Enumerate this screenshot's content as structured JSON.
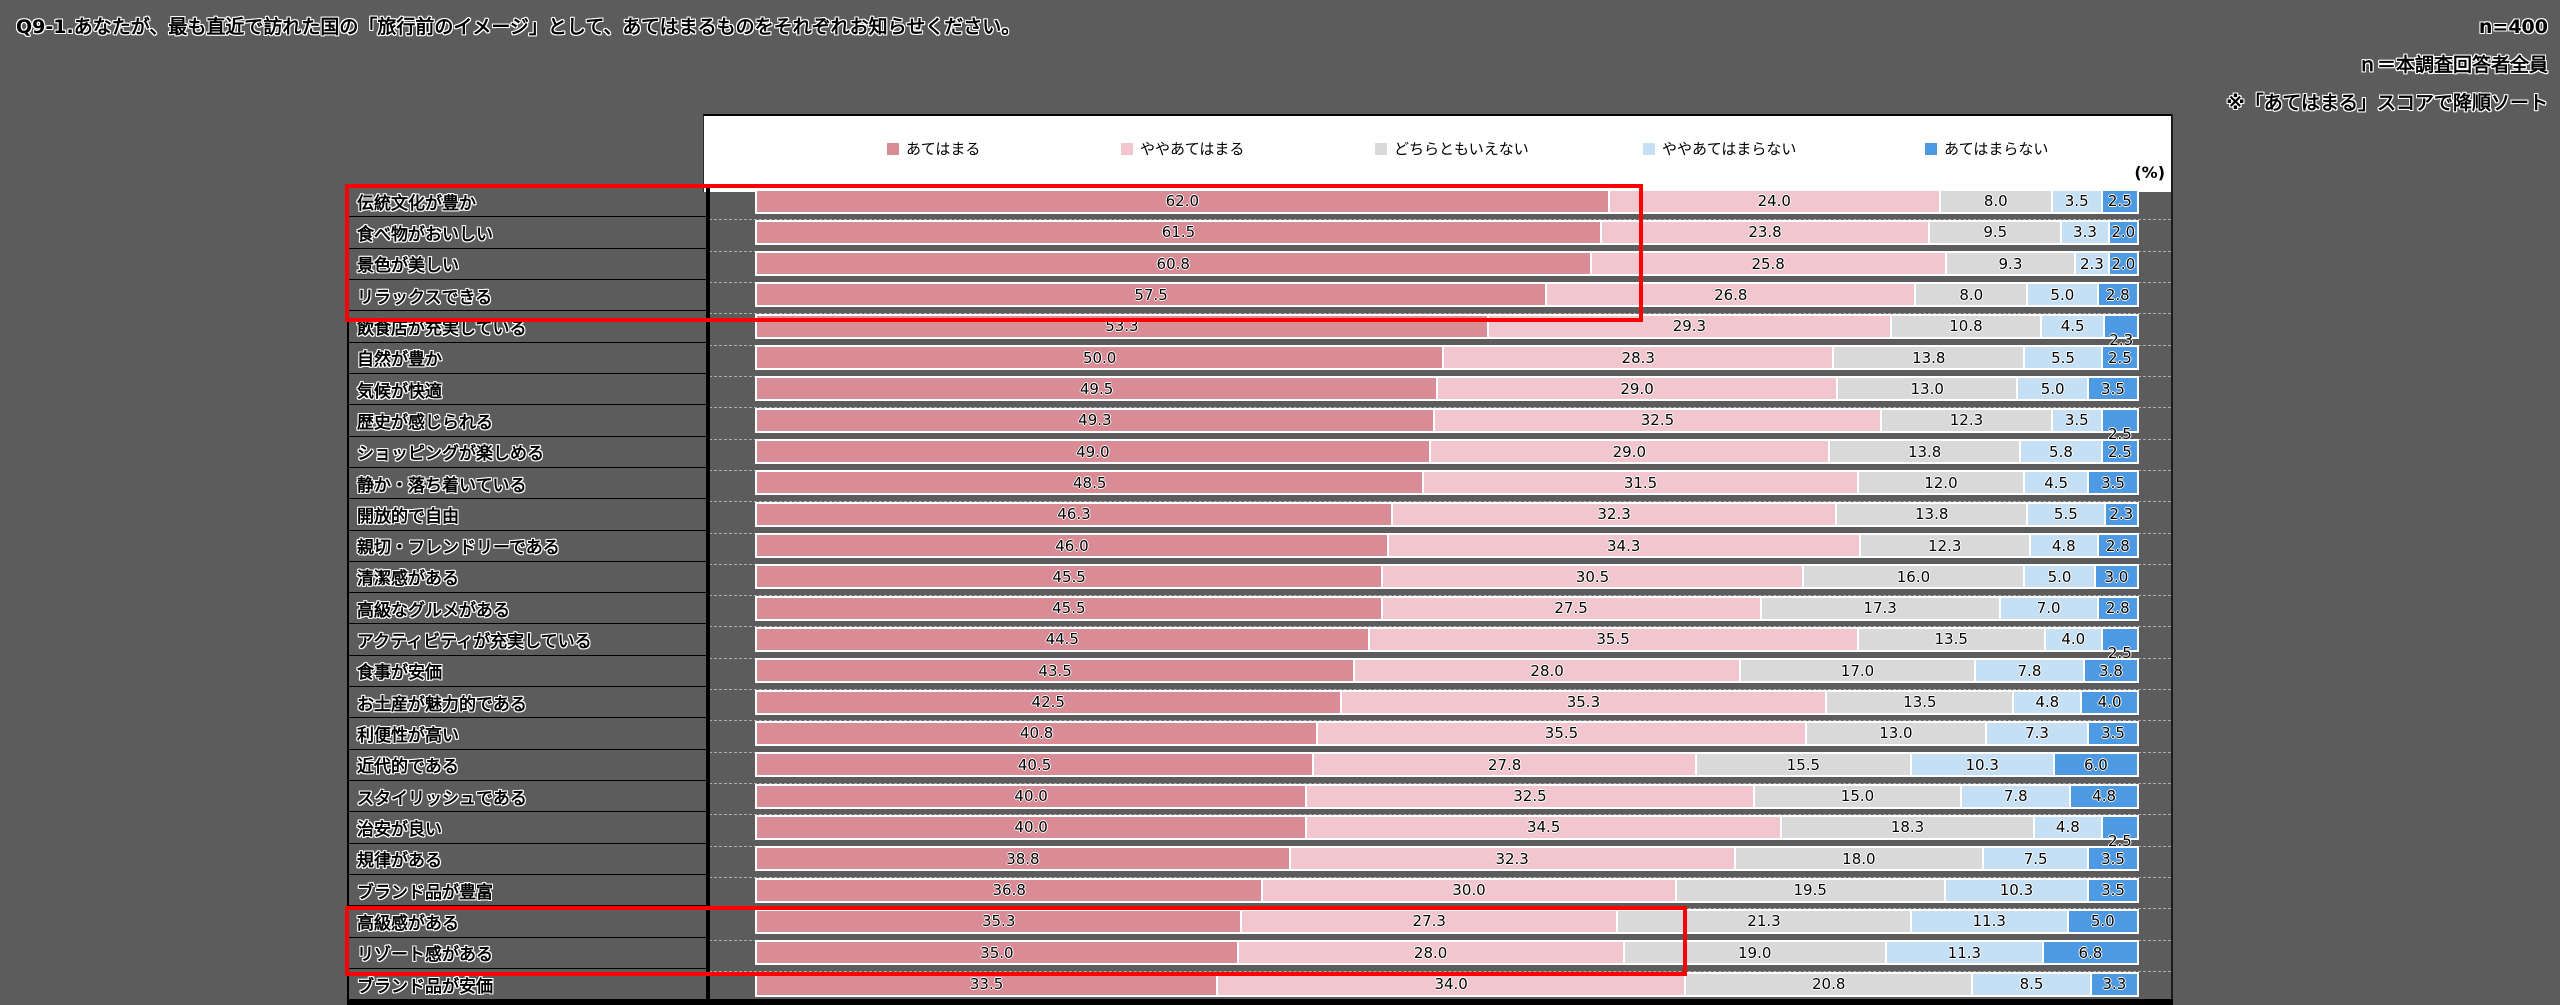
{
  "header": {
    "title": "Q9-1.あなたが、最も直近で訪れた国の「旅行前のイメージ」として、あてはまるものをそれぞれお知らせください。",
    "meta_lines": [
      "n=400",
      "ｎ＝本調査回答者全員",
      "※「あてはまる」スコアで降順ソート"
    ]
  },
  "unit_label": "(%)",
  "colors": {
    "page_bg": "#5c5c5c",
    "panel_bg": "#ffffff",
    "highlight_box": "#ff0000",
    "series": [
      "#d98c96",
      "#f2c6ce",
      "#d9d9d9",
      "#c5e0f4",
      "#4d99e2"
    ]
  },
  "chart_data": {
    "type": "bar",
    "stacked": true,
    "orientation": "horizontal",
    "unit": "%",
    "xlim": [
      0,
      100
    ],
    "legend_position": "top",
    "value_decimals": 1,
    "series_names": [
      "あてはまる",
      "ややあてはまる",
      "どちらともいえない",
      "ややあてはまらない",
      "あてはまらない"
    ],
    "categories": [
      "伝統文化が豊か",
      "食べ物がおいしい",
      "景色が美しい",
      "リラックスできる",
      "飲食店が充実している",
      "自然が豊か",
      "気候が快適",
      "歴史が感じられる",
      "ショッピングが楽しめる",
      "静か・落ち着いている",
      "開放的で自由",
      "親切・フレンドリーである",
      "清潔感がある",
      "高級なグルメがある",
      "アクティビティが充実している",
      "食事が安価",
      "お土産が魅力的である",
      "利便性が高い",
      "近代的である",
      "スタイリッシュである",
      "治安が良い",
      "規律がある",
      "ブランド品が豊富",
      "高級感がある",
      "リゾート感がある",
      "ブランド品が安価"
    ],
    "series": [
      {
        "name": "あてはまる",
        "values": [
          62.0,
          61.5,
          60.8,
          57.5,
          53.3,
          50.0,
          49.5,
          49.3,
          49.0,
          48.5,
          46.3,
          46.0,
          45.5,
          45.5,
          44.5,
          43.5,
          42.5,
          40.8,
          40.5,
          40.0,
          40.0,
          38.8,
          36.8,
          35.3,
          35.0,
          33.5
        ]
      },
      {
        "name": "ややあてはまる",
        "values": [
          24.0,
          23.8,
          25.8,
          26.8,
          29.3,
          28.3,
          29.0,
          32.5,
          29.0,
          31.5,
          32.3,
          34.3,
          30.5,
          27.5,
          35.5,
          28.0,
          35.3,
          35.5,
          27.8,
          32.5,
          34.5,
          32.3,
          30.0,
          27.3,
          28.0,
          34.0
        ]
      },
      {
        "name": "どちらともいえない",
        "values": [
          8.0,
          9.5,
          9.3,
          8.0,
          10.8,
          13.8,
          13.0,
          12.3,
          13.8,
          12.0,
          13.8,
          12.3,
          16.0,
          17.3,
          13.5,
          17.0,
          13.5,
          13.0,
          15.5,
          15.0,
          18.3,
          18.0,
          19.5,
          21.3,
          19.0,
          20.8
        ]
      },
      {
        "name": "ややあてはまらない",
        "values": [
          3.5,
          3.3,
          2.3,
          5.0,
          4.5,
          5.5,
          5.0,
          3.5,
          5.8,
          4.5,
          5.5,
          4.8,
          5.0,
          7.0,
          4.0,
          7.8,
          4.8,
          7.3,
          10.3,
          7.8,
          4.8,
          7.5,
          10.3,
          11.3,
          11.3,
          8.5
        ]
      },
      {
        "name": "あてはまらない",
        "values": [
          2.5,
          2.0,
          2.0,
          2.8,
          2.3,
          2.5,
          3.5,
          2.5,
          2.5,
          3.5,
          2.3,
          2.8,
          3.0,
          2.8,
          2.5,
          3.8,
          4.0,
          3.5,
          6.0,
          4.8,
          2.5,
          3.5,
          3.5,
          5.0,
          6.8,
          3.3
        ]
      }
    ],
    "last_label_dropped_below_rows": [
      5,
      8,
      15,
      21
    ],
    "highlighted_category_ranges": [
      {
        "from": "伝統文化が豊か",
        "to": "リラックスできる"
      },
      {
        "from": "高級感がある",
        "to": "リゾート感がある"
      }
    ]
  }
}
